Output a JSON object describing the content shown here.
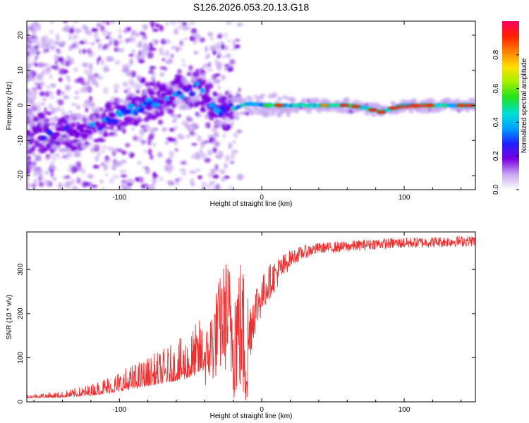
{
  "title": "S126.2026.053.20.13.G18",
  "chart_data": [
    {
      "type": "heatmap",
      "xlabel": "Height of straight line (km)",
      "ylabel": "Frequency (Hz)",
      "xlim": [
        -165,
        150
      ],
      "ylim": [
        -24,
        24
      ],
      "xticks": [
        -100,
        0,
        100
      ],
      "yticks": [
        -20,
        -10,
        0,
        10,
        20
      ],
      "xtick_labels": [
        "-100",
        "0",
        "100"
      ],
      "ytick_labels": [
        "-20",
        "-10",
        "0",
        "10",
        "20"
      ],
      "ridge": {
        "x": [
          -165,
          -140,
          -120,
          -100,
          -80,
          -60,
          -45,
          -38,
          -30,
          -20,
          -10,
          0,
          20,
          40,
          60,
          70,
          80,
          85,
          90,
          100,
          120,
          150
        ],
        "freq": [
          -8,
          -8,
          -7,
          -3,
          1,
          3,
          5,
          2,
          -2,
          -1,
          0.5,
          0,
          0,
          0,
          0,
          -0.5,
          -1.5,
          -2,
          -1,
          0,
          0,
          0
        ]
      },
      "colorbar": {
        "label": "Normalized spectral amplitude",
        "ticks": [
          0.0,
          0.2,
          0.4,
          0.6,
          0.8
        ],
        "tick_labels": [
          "0.0",
          "0.2",
          "0.4",
          "0.6",
          "0.8"
        ],
        "range": [
          0,
          1
        ],
        "colormap": [
          "#ffffff",
          "#c8a8f0",
          "#7a00e0",
          "#2020ff",
          "#00a0ff",
          "#00e0d0",
          "#20e020",
          "#a0f000",
          "#ffe000",
          "#ff8000",
          "#ff2000",
          "#ff0060"
        ]
      }
    },
    {
      "type": "line",
      "xlabel": "Height of straight line (km)",
      "ylabel": "SNR (10 * v/v)",
      "xlim": [
        -165,
        150
      ],
      "ylim": [
        0,
        385
      ],
      "xticks": [
        -100,
        0,
        100
      ],
      "yticks": [
        0,
        100,
        200,
        300
      ],
      "xtick_labels": [
        "-100",
        "0",
        "100"
      ],
      "ytick_labels": [
        "0",
        "100",
        "200",
        "300"
      ],
      "series": [
        {
          "name": "SNR",
          "color": "#ee3030",
          "x": [
            -165,
            -140,
            -120,
            -100,
            -80,
            -60,
            -50,
            -40,
            -35,
            -30,
            -25,
            -20,
            -15,
            -10,
            -8,
            -5,
            0,
            5,
            10,
            15,
            20,
            30,
            40,
            60,
            80,
            100,
            120,
            150
          ],
          "y": [
            10,
            12,
            18,
            30,
            45,
            60,
            70,
            90,
            130,
            170,
            200,
            150,
            170,
            110,
            170,
            210,
            240,
            270,
            290,
            305,
            325,
            340,
            348,
            352,
            358,
            360,
            362,
            365
          ],
          "noise": [
            4,
            6,
            12,
            22,
            30,
            40,
            50,
            60,
            90,
            110,
            130,
            150,
            160,
            170,
            70,
            60,
            45,
            40,
            35,
            30,
            18,
            15,
            12,
            12,
            12,
            12,
            12,
            12
          ]
        }
      ]
    }
  ]
}
